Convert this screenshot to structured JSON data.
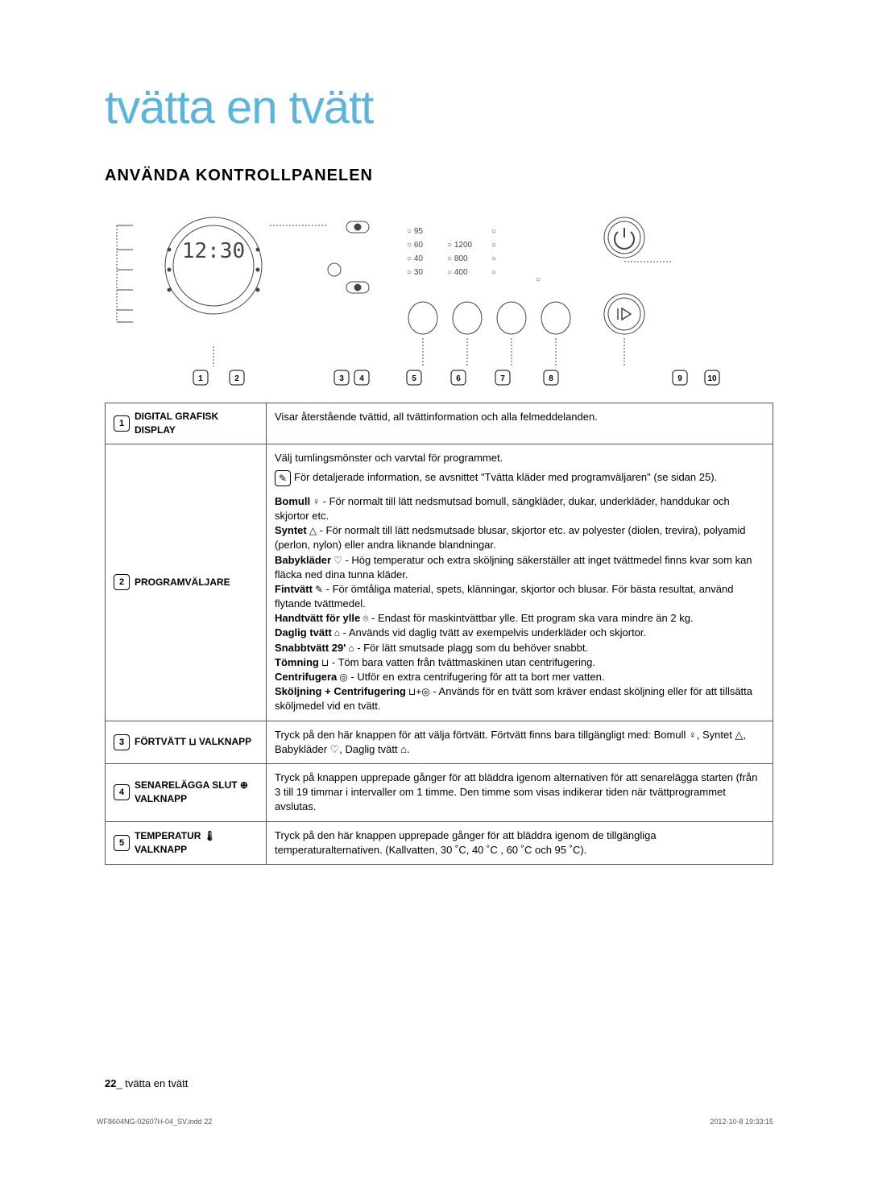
{
  "page": {
    "title": "tvätta en tvätt",
    "section_heading": "ANVÄNDA KONTROLLPANELEN",
    "footer": {
      "page_number": "22",
      "footer_text": "_ tvätta en tvätt",
      "publication_ref": "WF8604NG-02607H-04_SV.indd   22",
      "publication_date": "2012-10-8   19:33:15"
    }
  },
  "diagram": {
    "display_time": "12:30",
    "temps": [
      "95",
      "60",
      "40",
      "30"
    ],
    "spins": [
      "1200",
      "800",
      "400"
    ],
    "ref_positions": [
      105,
      150,
      280,
      305,
      370,
      425,
      480,
      540,
      700,
      740
    ]
  },
  "table": {
    "rows": [
      {
        "num": "1",
        "label": "DIGITAL GRAFISK DISPLAY",
        "type": "simple",
        "desc": "Visar återstående tvättid, all tvättinformation och alla felmeddelanden."
      },
      {
        "num": "2",
        "label": "PROGRAMVÄLJARE",
        "type": "programs",
        "intro": "Välj tumlingsmönster och varvtal för programmet.",
        "info_note": "För detaljerade information, se avsnittet \"Tvätta kläder med programväljaren\" (se sidan 25).",
        "programs": [
          {
            "name": "Bomull",
            "icon": "♀",
            "desc": " - För normalt till lätt nedsmutsad bomull, sängkläder, dukar, underkläder, handdukar och skjortor etc."
          },
          {
            "name": "Syntet",
            "icon": "△",
            "desc": " - För normalt till lätt nedsmutsade blusar, skjortor etc. av polyester (diolen, trevira), polyamid (perlon, nylon) eller andra liknande blandningar."
          },
          {
            "name": "Babykläder",
            "icon": "♡",
            "desc": " - Hög temperatur och extra sköljning säkerställer att inget tvättmedel finns kvar som kan fläcka ned dina tunna kläder."
          },
          {
            "name": "Fintvätt",
            "icon": "✎",
            "desc": " - För ömtåliga material, spets, klänningar, skjortor och blusar. För bästa resultat, använd flytande tvättmedel."
          },
          {
            "name": "Handtvätt för ylle",
            "icon": "⌾",
            "desc": " - Endast för maskintvättbar ylle. Ett program ska vara mindre än 2 kg."
          },
          {
            "name": "Daglig tvätt",
            "icon": "⌂",
            "desc": " - Används vid daglig tvätt av exempelvis underkläder och skjortor."
          },
          {
            "name": "Snabbtvätt 29'",
            "icon": "⌂",
            "desc": " - För lätt smutsade plagg som du behöver snabbt."
          },
          {
            "name": "Tömning",
            "icon": "⊔",
            "desc": " - Töm bara vatten från tvättmaskinen utan centrifugering."
          },
          {
            "name": "Centrifugera",
            "icon": "◎",
            "desc": " - Utför en extra centrifugering för att ta bort mer vatten."
          },
          {
            "name": "Sköljning + Centrifugering",
            "icon": "⊔+◎",
            "desc": " - Används för en tvätt som kräver endast sköljning eller för att tillsätta sköljmedel vid en tvätt."
          }
        ]
      },
      {
        "num": "3",
        "label": "FÖRTVÄTT ⊔ VALKNAPP",
        "type": "simple",
        "desc": "Tryck på den här knappen för att välja förtvätt. Förtvätt finns bara tillgängligt med: Bomull ♀, Syntet △, Babykläder ♡, Daglig tvätt ⌂."
      },
      {
        "num": "4",
        "label": "SENARELÄGGA SLUT ⊕ VALKNAPP",
        "type": "simple",
        "desc": "Tryck på knappen upprepade gånger för att bläddra igenom alternativen för att senarelägga starten (från 3 till 19 timmar i intervaller om 1 timme. Den timme som visas indikerar tiden när tvättprogrammet avslutas."
      },
      {
        "num": "5",
        "label": "TEMPERATUR 🌡 VALKNAPP",
        "type": "simple",
        "desc": "Tryck på den här knappen upprepade gånger för att bläddra igenom de tillgängliga temperaturalternativen.\n(Kallvatten, 30 ˚C, 40 ˚C , 60 ˚C och 95 ˚C)."
      }
    ]
  }
}
